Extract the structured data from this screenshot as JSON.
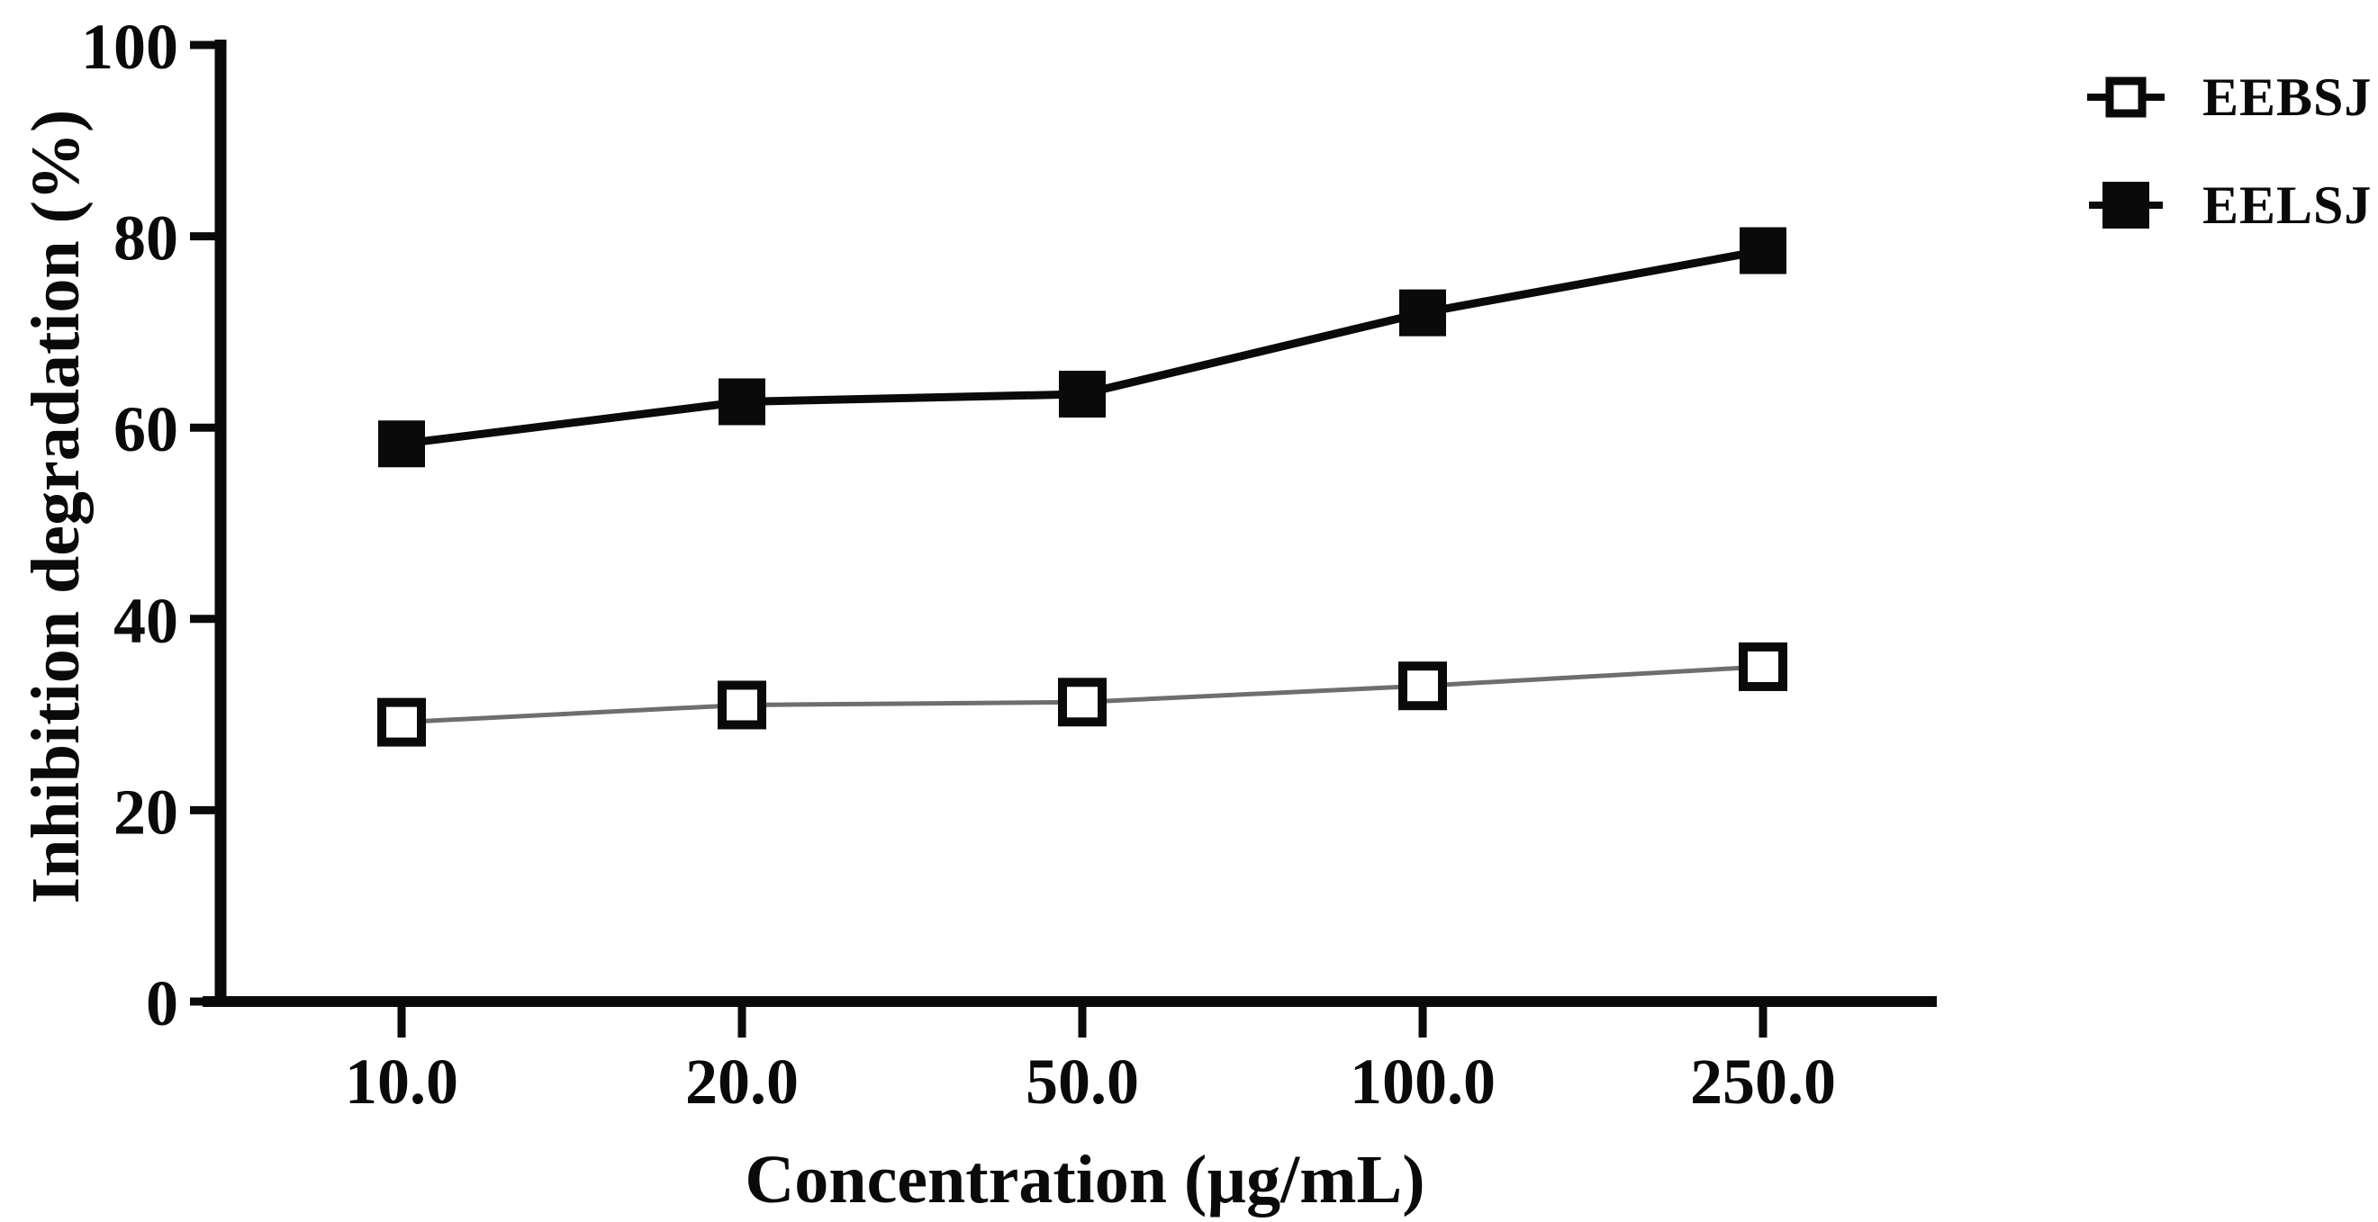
{
  "figure": {
    "background": "#ffffff",
    "text_color": "#0a0a0a"
  },
  "chart_data": {
    "type": "line",
    "title": "",
    "xlabel": "Concentration (µg/mL)",
    "ylabel": "Inhibition degradation (%)",
    "x_tick_labels": [
      "10.0",
      "20.0",
      "50.0",
      "100.0",
      "250.0"
    ],
    "x_values": [
      10.0,
      20.0,
      50.0,
      100.0,
      250.0
    ],
    "x_spacing": "categorical-even",
    "y_ticks": [
      0,
      20,
      40,
      60,
      80,
      100
    ],
    "ylim": [
      0,
      100
    ],
    "grid": false,
    "legend_position": "top-right-outside",
    "axis_color": "#0a0a0a",
    "series": [
      {
        "name": "EEBSJ",
        "marker": "open-square",
        "line_color": "#6e6e6e",
        "marker_color": "#0a0a0a",
        "marker_fill": "#ffffff",
        "values": [
          29.2,
          31.0,
          31.3,
          33.0,
          35.0
        ]
      },
      {
        "name": "EELSJ",
        "marker": "filled-square",
        "line_color": "#0a0a0a",
        "marker_color": "#0a0a0a",
        "marker_fill": "#0a0a0a",
        "values": [
          58.3,
          62.7,
          63.5,
          72.0,
          78.5
        ]
      }
    ]
  }
}
